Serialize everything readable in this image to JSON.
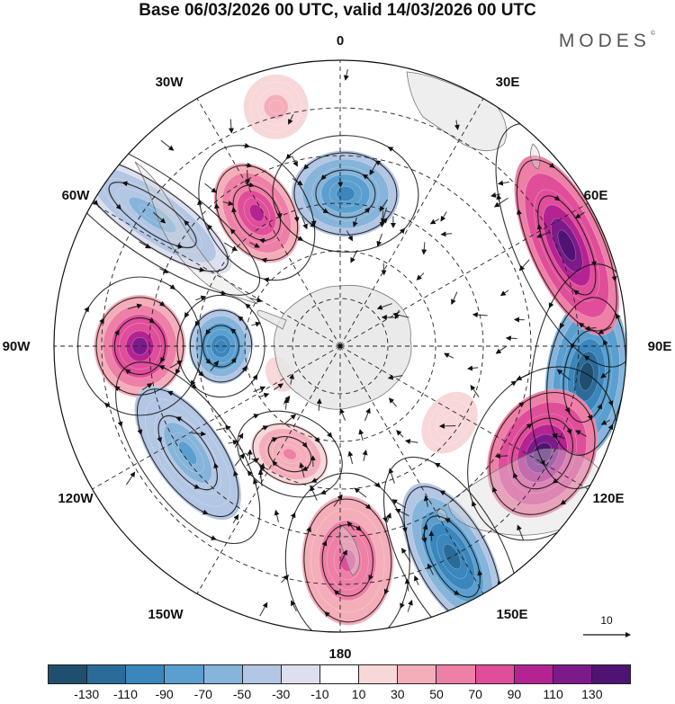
{
  "title": "Base 06/03/2026 00 UTC, valid 14/03/2026 00 UTC",
  "brand": "MODES",
  "brand_mark": "©",
  "longitude_labels": {
    "lon_0": "0",
    "lon_30e": "30E",
    "lon_60e": "60E",
    "lon_90e": "90E",
    "lon_120e": "120E",
    "lon_150e": "150E",
    "lon_180": "180",
    "lon_150w": "150W",
    "lon_120w": "120W",
    "lon_90w": "90W",
    "lon_60w": "60W",
    "lon_30w": "30W"
  },
  "vector_reference": {
    "label": "10"
  },
  "colorbar": {
    "colors": [
      "#1f4e6e",
      "#2a6b99",
      "#3a86bd",
      "#5a9fcf",
      "#86b4da",
      "#b3c6e3",
      "#dedfee",
      "#ffffff",
      "#f8d7d8",
      "#f4aeba",
      "#ee7fa6",
      "#e04e9a",
      "#b52392",
      "#7d1a8a",
      "#4e1373"
    ],
    "ticks": [
      "-130",
      "-110",
      "-90",
      "-70",
      "-50",
      "-30",
      "-10",
      "10",
      "30",
      "50",
      "70",
      "90",
      "110",
      "130"
    ]
  },
  "anomaly_centers": [
    {
      "lon": 97,
      "colat": 52,
      "value": -120,
      "sx": 62,
      "sy": 30
    },
    {
      "lon": 118,
      "colat": 48,
      "value": 120,
      "sx": 50,
      "sy": 38
    },
    {
      "lon": 152,
      "colat": 50,
      "value": -105,
      "sx": 28,
      "sy": 60
    },
    {
      "lon": 178,
      "colat": 45,
      "value": 65,
      "sx": 34,
      "sy": 48
    },
    {
      "lon": 66,
      "colat": 52,
      "value": 120,
      "sx": 72,
      "sy": 28
    },
    {
      "lon": 2,
      "colat": 32,
      "value": -80,
      "sx": 40,
      "sy": 32
    },
    {
      "lon": -32,
      "colat": 33,
      "value": 85,
      "sx": 28,
      "sy": 40
    },
    {
      "lon": -90,
      "colat": 25,
      "value": -95,
      "sx": 28,
      "sy": 24
    },
    {
      "lon": -90,
      "colat": 42,
      "value": 100,
      "sx": 38,
      "sy": 34
    },
    {
      "lon": -125,
      "colat": 39,
      "value": -60,
      "sx": 58,
      "sy": 26
    },
    {
      "lon": -155,
      "colat": 25,
      "value": 40,
      "sx": 30,
      "sy": 22
    },
    {
      "lon": -55,
      "colat": 48,
      "value": -45,
      "sx": 22,
      "sy": 70
    },
    {
      "lon": -15,
      "colat": 52,
      "value": 25,
      "sx": 30,
      "sy": 30
    },
    {
      "lon": 125,
      "colat": 28,
      "value": 18,
      "sx": 40,
      "sy": 30
    },
    {
      "lon": -115,
      "colat": 14,
      "value": 15,
      "sx": 30,
      "sy": 22
    }
  ]
}
